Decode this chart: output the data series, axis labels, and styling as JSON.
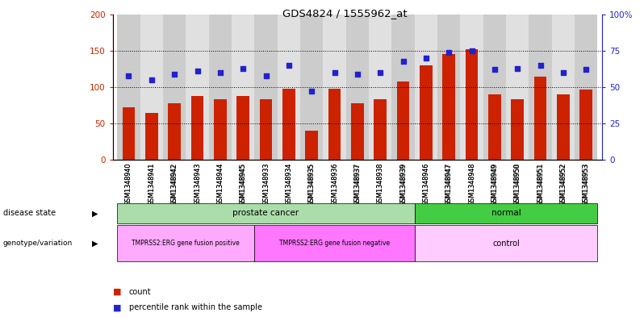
{
  "title": "GDS4824 / 1555962_at",
  "samples": [
    "GSM1348940",
    "GSM1348941",
    "GSM1348942",
    "GSM1348943",
    "GSM1348944",
    "GSM1348945",
    "GSM1348933",
    "GSM1348934",
    "GSM1348935",
    "GSM1348936",
    "GSM1348937",
    "GSM1348938",
    "GSM1348939",
    "GSM1348946",
    "GSM1348947",
    "GSM1348948",
    "GSM1348949",
    "GSM1348950",
    "GSM1348951",
    "GSM1348952",
    "GSM1348953"
  ],
  "counts": [
    72,
    65,
    78,
    88,
    84,
    88,
    84,
    98,
    40,
    98,
    78,
    84,
    108,
    130,
    145,
    152,
    90,
    84,
    115,
    90,
    97
  ],
  "percentiles": [
    58,
    55,
    59,
    61,
    60,
    63,
    58,
    65,
    47,
    60,
    59,
    60,
    68,
    70,
    74,
    75,
    62,
    63,
    65,
    60,
    62
  ],
  "ylim_left": [
    0,
    200
  ],
  "ylim_right": [
    0,
    100
  ],
  "yticks_left": [
    0,
    50,
    100,
    150,
    200
  ],
  "yticks_right": [
    0,
    25,
    50,
    75,
    100
  ],
  "ytick_labels_right": [
    "0",
    "25",
    "50",
    "75",
    "100%"
  ],
  "bar_color": "#cc2200",
  "dot_color": "#2222cc",
  "dot_size": 22,
  "grid_values": [
    50,
    100,
    150
  ],
  "disease_state_groups": [
    {
      "label": "prostate cancer",
      "start": 0,
      "end": 13,
      "color": "#aaddaa"
    },
    {
      "label": "normal",
      "start": 13,
      "end": 21,
      "color": "#44cc44"
    }
  ],
  "genotype_groups": [
    {
      "label": "TMPRSS2:ERG gene fusion positive",
      "start": 0,
      "end": 6,
      "color": "#ffaaff"
    },
    {
      "label": "TMPRSS2:ERG gene fusion negative",
      "start": 6,
      "end": 13,
      "color": "#ff77ff"
    },
    {
      "label": "control",
      "start": 13,
      "end": 21,
      "color": "#ffccff"
    }
  ],
  "legend_count_color": "#cc2200",
  "legend_dot_color": "#2222cc",
  "background_color": "#ffffff",
  "bar_width": 0.55,
  "col_colors": [
    "#cccccc",
    "#e0e0e0"
  ]
}
